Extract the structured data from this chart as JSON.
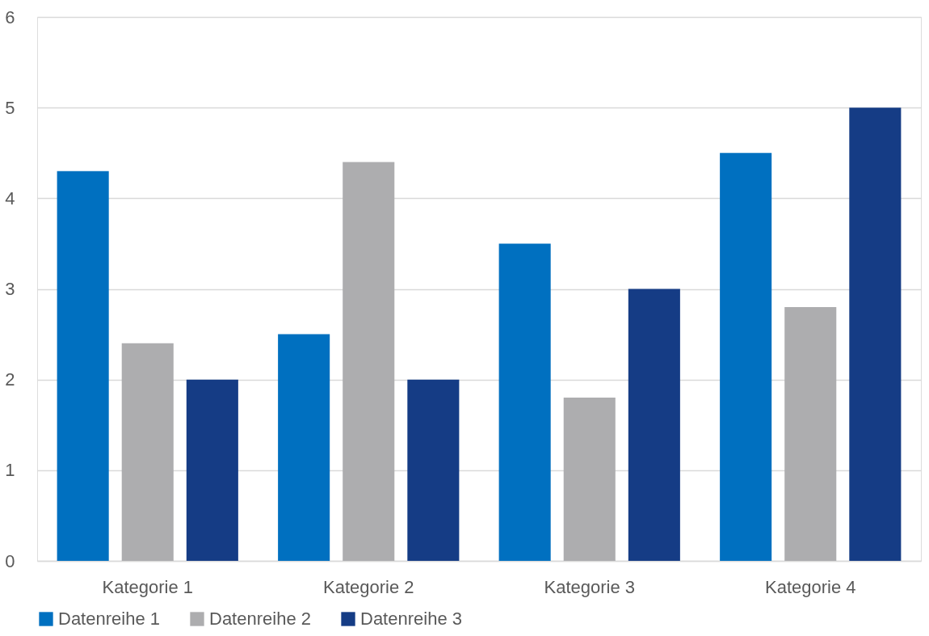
{
  "chart_data": {
    "type": "bar",
    "categories": [
      "Kategorie 1",
      "Kategorie 2",
      "Kategorie 3",
      "Kategorie 4"
    ],
    "series": [
      {
        "name": "Datenreihe 1",
        "color": "#0070c0",
        "values": [
          4.3,
          2.5,
          3.5,
          4.5
        ]
      },
      {
        "name": "Datenreihe 2",
        "color": "#adadaf",
        "values": [
          2.4,
          4.4,
          1.8,
          2.8
        ]
      },
      {
        "name": "Datenreihe 3",
        "color": "#153c85",
        "values": [
          2,
          2,
          3,
          5
        ]
      }
    ],
    "ylim": [
      0,
      6
    ],
    "yticks": [
      0,
      1,
      2,
      3,
      4,
      5,
      6
    ],
    "grid": "y",
    "legend": "bottom"
  }
}
